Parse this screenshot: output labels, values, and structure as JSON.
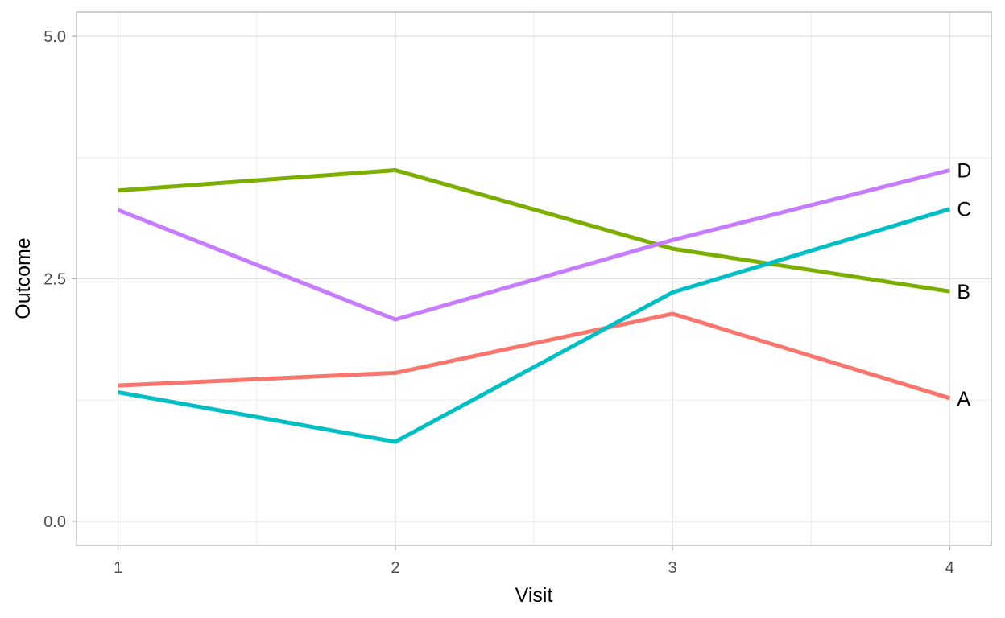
{
  "chart_data": {
    "type": "line",
    "xlabel": "Visit",
    "ylabel": "Outcome",
    "x": [
      1,
      2,
      3,
      4
    ],
    "xlim": [
      0.85,
      4.15
    ],
    "ylim": [
      -0.25,
      5.25
    ],
    "x_ticks": [
      "1",
      "2",
      "3",
      "4"
    ],
    "y_ticks": [
      {
        "value": 0.0,
        "label": "0.0"
      },
      {
        "value": 2.5,
        "label": "2.5"
      },
      {
        "value": 5.0,
        "label": "5.0"
      }
    ],
    "grid": true,
    "legend": "direct labels at line ends",
    "series": [
      {
        "name": "A",
        "color": "#F8766D",
        "values": [
          1.4,
          1.53,
          2.14,
          1.27
        ]
      },
      {
        "name": "B",
        "color": "#7CAE00",
        "values": [
          3.41,
          3.62,
          2.81,
          2.37
        ]
      },
      {
        "name": "C",
        "color": "#00BFC4",
        "values": [
          1.33,
          0.82,
          2.36,
          3.22
        ]
      },
      {
        "name": "D",
        "color": "#C77CFF",
        "values": [
          3.21,
          2.08,
          2.9,
          3.62
        ]
      }
    ]
  }
}
